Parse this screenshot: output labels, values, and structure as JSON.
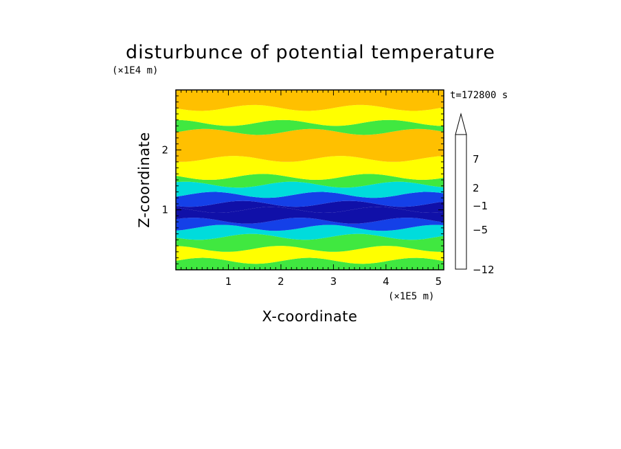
{
  "chart_data": {
    "type": "heatmap",
    "title": "disturbunce of potential temperature",
    "xlabel": "X-coordinate",
    "ylabel": "Z-coordinate",
    "x_unit": "(×1E5 m)",
    "y_unit": "(×1E4 m)",
    "time_label": "t=172800 s",
    "xlim": [
      0,
      5.1
    ],
    "ylim": [
      0,
      3.0
    ],
    "x_ticks": [
      1,
      2,
      3,
      4,
      5
    ],
    "y_ticks": [
      1,
      2
    ],
    "colorbar": {
      "tick_labels": [
        "7",
        "2",
        "−1",
        "−5",
        "−12"
      ],
      "level_colors": [
        "#ff10b0",
        "#c800c0",
        "#7a10b0",
        "#1010a8",
        "#1440e8",
        "#00dcdc",
        "#40e840",
        "#ffff00",
        "#ffc000",
        "#ff8000",
        "#ff4000",
        "#e81010",
        "#ff8c8c",
        "#ffc8c8"
      ],
      "extend_top": true
    },
    "bands": [
      {
        "z": [
          0.0,
          0.15
        ],
        "level": 6
      },
      {
        "z": [
          0.15,
          0.35
        ],
        "level": 7
      },
      {
        "z": [
          0.35,
          0.55
        ],
        "level": 6
      },
      {
        "z": [
          0.55,
          0.7
        ],
        "level": 5
      },
      {
        "z": [
          0.7,
          0.82
        ],
        "level": 4
      },
      {
        "z": [
          0.82,
          1.0
        ],
        "level": 3
      },
      {
        "z": [
          1.0,
          1.1
        ],
        "level": 3
      },
      {
        "z": [
          1.1,
          1.25
        ],
        "level": 4
      },
      {
        "z": [
          1.25,
          1.42
        ],
        "level": 5
      },
      {
        "z": [
          1.42,
          1.55
        ],
        "level": 6
      },
      {
        "z": [
          1.55,
          1.85
        ],
        "level": 7
      },
      {
        "z": [
          1.85,
          2.3
        ],
        "level": 8
      },
      {
        "z": [
          2.3,
          2.45
        ],
        "level": 6
      },
      {
        "z": [
          2.45,
          2.7
        ],
        "level": 7
      },
      {
        "z": [
          2.7,
          3.0
        ],
        "level": 8
      }
    ]
  }
}
